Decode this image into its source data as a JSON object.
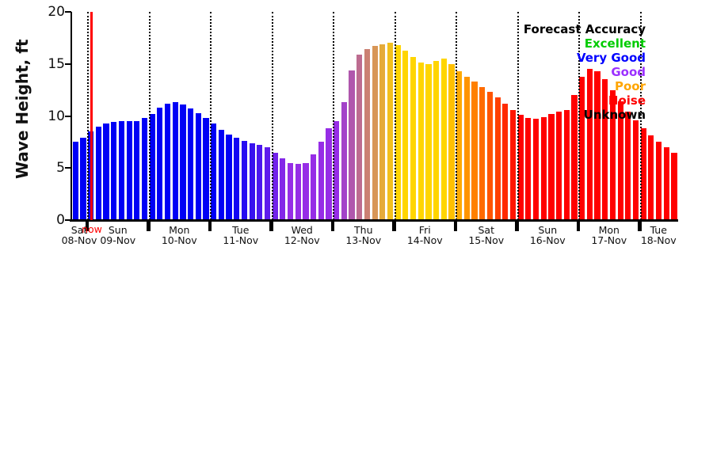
{
  "chart_data": {
    "type": "bar",
    "title": "",
    "ylabel": "Wave Height, ft",
    "unit": "ft",
    "ylim": [
      0,
      20
    ],
    "yticks": [
      0,
      5,
      10,
      15,
      20
    ],
    "grid": "vertical dotted lines at each day boundary",
    "legend_position": "top-right",
    "values": [
      7.5,
      7.9,
      8.5,
      9.0,
      9.3,
      9.4,
      9.5,
      9.5,
      9.5,
      9.8,
      10.2,
      10.8,
      11.2,
      11.3,
      11.1,
      10.7,
      10.3,
      9.8,
      9.3,
      8.7,
      8.2,
      7.9,
      7.6,
      7.4,
      7.2,
      7.0,
      6.5,
      5.9,
      5.5,
      5.4,
      5.5,
      6.3,
      7.5,
      8.8,
      9.5,
      11.3,
      14.4,
      15.9,
      16.4,
      16.7,
      16.9,
      17.0,
      16.8,
      16.3,
      15.7,
      15.1,
      15.0,
      15.3,
      15.5,
      15.0,
      14.3,
      13.8,
      13.3,
      12.8,
      12.3,
      11.8,
      11.2,
      10.6,
      10.1,
      9.8,
      9.7,
      9.9,
      10.2,
      10.4,
      10.6,
      12.0,
      13.8,
      14.5,
      14.3,
      13.5,
      12.5,
      11.4,
      10.4,
      9.6,
      8.8,
      8.1,
      7.5,
      7.0,
      6.5
    ],
    "days": [
      {
        "weekday": "Sat",
        "date": "08-Nov"
      },
      {
        "weekday": "Sun",
        "date": "09-Nov"
      },
      {
        "weekday": "Mon",
        "date": "10-Nov"
      },
      {
        "weekday": "Tue",
        "date": "11-Nov"
      },
      {
        "weekday": "Wed",
        "date": "12-Nov"
      },
      {
        "weekday": "Thu",
        "date": "13-Nov"
      },
      {
        "weekday": "Fri",
        "date": "14-Nov"
      },
      {
        "weekday": "Sat",
        "date": "15-Nov"
      },
      {
        "weekday": "Sun",
        "date": "16-Nov"
      },
      {
        "weekday": "Mon",
        "date": "17-Nov"
      },
      {
        "weekday": "Tue",
        "date": "18-Nov"
      }
    ],
    "color_stops": [
      {
        "i": 0,
        "c": [
          0,
          0,
          245
        ]
      },
      {
        "i": 20,
        "c": [
          0,
          0,
          245
        ]
      },
      {
        "i": 28,
        "c": [
          150,
          45,
          230
        ]
      },
      {
        "i": 34,
        "c": [
          150,
          45,
          230
        ]
      },
      {
        "i": 42,
        "c": [
          255,
          213,
          0
        ]
      },
      {
        "i": 48,
        "c": [
          255,
          213,
          0
        ]
      },
      {
        "i": 58,
        "c": [
          255,
          0,
          0
        ]
      },
      {
        "i": 78,
        "c": [
          255,
          0,
          0
        ]
      }
    ],
    "now_label": "now",
    "now_color": "#ff0000"
  },
  "legend": {
    "items": [
      {
        "label": "Forecast Accuracy",
        "color": "#000000"
      },
      {
        "label": "Excellent",
        "color": "#00cc00"
      },
      {
        "label": "Very Good",
        "color": "#0000ff"
      },
      {
        "label": "Good",
        "color": "#9b30ff"
      },
      {
        "label": "Poor",
        "color": "#ffa500"
      },
      {
        "label": "Noise",
        "color": "#ff0000"
      },
      {
        "label": "Unknown",
        "color": "#000000"
      }
    ]
  }
}
